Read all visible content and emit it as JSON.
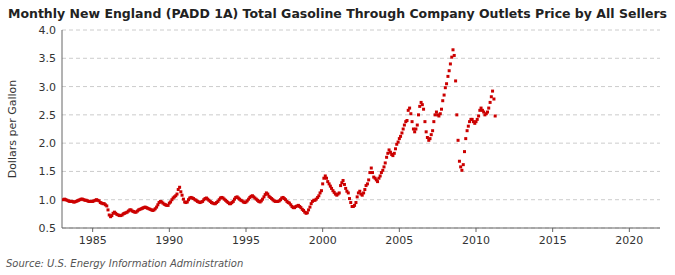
{
  "chart_data": {
    "type": "scatter",
    "title": "Monthly New England (PADD 1A) Total Gasoline Through Company Outlets Price by All Sellers",
    "ylabel": "Dollars per Gallon",
    "source": "Source: U.S. Energy Information Administration",
    "color": "#cc0000",
    "marker": "square",
    "grid": true,
    "xlim": [
      1983,
      2022
    ],
    "ylim": [
      0.5,
      4.0
    ],
    "xticks": [
      1985,
      1990,
      1995,
      2000,
      2005,
      2010,
      2015,
      2020
    ],
    "yticks": [
      0.5,
      {
        "value": 1.0,
        "label": "1.0"
      },
      1.5,
      {
        "value": 2.0,
        "label": "2.0"
      },
      2.5,
      {
        "value": 3.0,
        "label": "3.0"
      },
      3.5,
      {
        "value": 4.0,
        "label": "4.0"
      }
    ],
    "x": [
      1983.08,
      1983.17,
      1983.25,
      1983.33,
      1983.42,
      1983.5,
      1983.58,
      1983.67,
      1983.75,
      1983.83,
      1983.92,
      1984.0,
      1984.08,
      1984.17,
      1984.25,
      1984.33,
      1984.42,
      1984.5,
      1984.58,
      1984.67,
      1984.75,
      1984.83,
      1984.92,
      1985.0,
      1985.08,
      1985.17,
      1985.25,
      1985.33,
      1985.42,
      1985.5,
      1985.58,
      1985.67,
      1985.75,
      1985.83,
      1985.92,
      1986.0,
      1986.08,
      1986.17,
      1986.25,
      1986.33,
      1986.42,
      1986.5,
      1986.58,
      1986.67,
      1986.75,
      1986.83,
      1986.92,
      1987.0,
      1987.08,
      1987.17,
      1987.25,
      1987.33,
      1987.42,
      1987.5,
      1987.58,
      1987.67,
      1987.75,
      1987.83,
      1987.92,
      1988.0,
      1988.08,
      1988.17,
      1988.25,
      1988.33,
      1988.42,
      1988.5,
      1988.58,
      1988.67,
      1988.75,
      1988.83,
      1988.92,
      1989.0,
      1989.08,
      1989.17,
      1989.25,
      1989.33,
      1989.42,
      1989.5,
      1989.58,
      1989.67,
      1989.75,
      1989.83,
      1989.92,
      1990.0,
      1990.08,
      1990.17,
      1990.25,
      1990.33,
      1990.42,
      1990.5,
      1990.58,
      1990.67,
      1990.75,
      1990.83,
      1990.92,
      1991.0,
      1991.08,
      1991.17,
      1991.25,
      1991.33,
      1991.42,
      1991.5,
      1991.58,
      1991.67,
      1991.75,
      1991.83,
      1991.92,
      1992.0,
      1992.08,
      1992.17,
      1992.25,
      1992.33,
      1992.42,
      1992.5,
      1992.58,
      1992.67,
      1992.75,
      1992.83,
      1992.92,
      1993.0,
      1993.08,
      1993.17,
      1993.25,
      1993.33,
      1993.42,
      1993.5,
      1993.58,
      1993.67,
      1993.75,
      1993.83,
      1993.92,
      1994.0,
      1994.08,
      1994.17,
      1994.25,
      1994.33,
      1994.42,
      1994.5,
      1994.58,
      1994.67,
      1994.75,
      1994.83,
      1994.92,
      1995.0,
      1995.08,
      1995.17,
      1995.25,
      1995.33,
      1995.42,
      1995.5,
      1995.58,
      1995.67,
      1995.75,
      1995.83,
      1995.92,
      1996.0,
      1996.08,
      1996.17,
      1996.25,
      1996.33,
      1996.42,
      1996.5,
      1996.58,
      1996.67,
      1996.75,
      1996.83,
      1996.92,
      1997.0,
      1997.08,
      1997.17,
      1997.25,
      1997.33,
      1997.42,
      1997.5,
      1997.58,
      1997.67,
      1997.75,
      1997.83,
      1997.92,
      1998.0,
      1998.08,
      1998.17,
      1998.25,
      1998.33,
      1998.42,
      1998.5,
      1998.58,
      1998.67,
      1998.75,
      1998.83,
      1998.92,
      1999.0,
      1999.08,
      1999.17,
      1999.25,
      1999.33,
      1999.42,
      1999.5,
      1999.58,
      1999.67,
      1999.75,
      1999.83,
      1999.92,
      2000.0,
      2000.08,
      2000.17,
      2000.25,
      2000.33,
      2000.42,
      2000.5,
      2000.58,
      2000.67,
      2000.75,
      2000.83,
      2000.92,
      2001.0,
      2001.08,
      2001.17,
      2001.25,
      2001.33,
      2001.42,
      2001.5,
      2001.58,
      2001.67,
      2001.75,
      2001.83,
      2001.92,
      2002.0,
      2002.08,
      2002.17,
      2002.25,
      2002.33,
      2002.42,
      2002.5,
      2002.58,
      2002.67,
      2002.75,
      2002.83,
      2002.92,
      2003.0,
      2003.08,
      2003.17,
      2003.25,
      2003.33,
      2003.42,
      2003.5,
      2003.58,
      2003.67,
      2003.75,
      2003.83,
      2003.92,
      2004.0,
      2004.08,
      2004.17,
      2004.25,
      2004.33,
      2004.42,
      2004.5,
      2004.58,
      2004.67,
      2004.75,
      2004.83,
      2004.92,
      2005.0,
      2005.08,
      2005.17,
      2005.25,
      2005.33,
      2005.42,
      2005.5,
      2005.58,
      2005.67,
      2005.75,
      2005.83,
      2005.92,
      2006.0,
      2006.08,
      2006.17,
      2006.25,
      2006.33,
      2006.42,
      2006.5,
      2006.58,
      2006.67,
      2006.75,
      2006.83,
      2006.92,
      2007.0,
      2007.08,
      2007.17,
      2007.25,
      2007.33,
      2007.42,
      2007.5,
      2007.58,
      2007.67,
      2007.75,
      2007.83,
      2007.92,
      2008.0,
      2008.08,
      2008.17,
      2008.25,
      2008.33,
      2008.42,
      2008.5,
      2008.58,
      2008.67,
      2008.75,
      2008.83,
      2008.92,
      2009.0,
      2009.08,
      2009.17,
      2009.25,
      2009.33,
      2009.42,
      2009.5,
      2009.58,
      2009.67,
      2009.75,
      2009.83,
      2009.92,
      2010.0,
      2010.08,
      2010.17,
      2010.25,
      2010.33,
      2010.42,
      2010.5,
      2010.58,
      2010.67,
      2010.75,
      2010.83,
      2010.92,
      2011.0,
      2011.08,
      2011.17,
      2011.25
    ],
    "values": [
      1.0,
      1.01,
      1.0,
      0.99,
      0.98,
      0.97,
      0.97,
      0.97,
      0.96,
      0.96,
      0.97,
      0.98,
      0.99,
      1.0,
      1.01,
      1.01,
      1.0,
      0.99,
      0.99,
      0.98,
      0.97,
      0.97,
      0.97,
      0.97,
      0.98,
      0.99,
      1.0,
      0.99,
      0.98,
      0.95,
      0.94,
      0.93,
      0.93,
      0.91,
      0.89,
      0.82,
      0.73,
      0.7,
      0.72,
      0.76,
      0.78,
      0.76,
      0.74,
      0.73,
      0.72,
      0.72,
      0.73,
      0.75,
      0.76,
      0.77,
      0.78,
      0.8,
      0.82,
      0.82,
      0.8,
      0.79,
      0.78,
      0.78,
      0.8,
      0.82,
      0.83,
      0.84,
      0.85,
      0.86,
      0.87,
      0.86,
      0.85,
      0.84,
      0.83,
      0.82,
      0.81,
      0.82,
      0.84,
      0.87,
      0.91,
      0.95,
      0.97,
      0.96,
      0.94,
      0.92,
      0.91,
      0.9,
      0.9,
      0.94,
      0.96,
      1.0,
      1.03,
      1.05,
      1.07,
      1.1,
      1.18,
      1.22,
      1.14,
      1.08,
      1.01,
      0.96,
      0.95,
      0.96,
      1.0,
      1.03,
      1.04,
      1.03,
      1.02,
      1.0,
      0.99,
      0.97,
      0.96,
      0.95,
      0.96,
      0.97,
      1.0,
      1.02,
      1.03,
      1.01,
      0.99,
      0.97,
      0.95,
      0.94,
      0.93,
      0.93,
      0.95,
      0.97,
      1.0,
      1.03,
      1.04,
      1.03,
      1.01,
      0.99,
      0.97,
      0.95,
      0.93,
      0.93,
      0.95,
      0.97,
      1.01,
      1.04,
      1.05,
      1.03,
      1.01,
      0.99,
      0.98,
      0.96,
      0.95,
      0.96,
      0.98,
      1.01,
      1.04,
      1.06,
      1.07,
      1.05,
      1.03,
      1.01,
      0.99,
      0.97,
      0.96,
      0.98,
      1.01,
      1.05,
      1.09,
      1.12,
      1.1,
      1.06,
      1.04,
      1.02,
      1.0,
      0.98,
      0.97,
      0.97,
      0.97,
      0.98,
      1.0,
      1.03,
      1.04,
      1.02,
      1.0,
      0.97,
      0.95,
      0.94,
      0.91,
      0.88,
      0.86,
      0.86,
      0.88,
      0.89,
      0.9,
      0.88,
      0.86,
      0.83,
      0.81,
      0.78,
      0.76,
      0.77,
      0.82,
      0.87,
      0.93,
      0.97,
      0.99,
      0.99,
      1.01,
      1.04,
      1.07,
      1.12,
      1.16,
      1.28,
      1.38,
      1.42,
      1.38,
      1.32,
      1.28,
      1.24,
      1.2,
      1.16,
      1.13,
      1.1,
      1.08,
      1.1,
      1.12,
      1.25,
      1.3,
      1.34,
      1.27,
      1.2,
      1.15,
      1.12,
      1.02,
      0.95,
      0.88,
      0.88,
      0.9,
      0.95,
      1.05,
      1.12,
      1.15,
      1.1,
      1.08,
      1.12,
      1.18,
      1.25,
      1.28,
      1.35,
      1.48,
      1.56,
      1.48,
      1.4,
      1.38,
      1.35,
      1.32,
      1.38,
      1.42,
      1.48,
      1.52,
      1.58,
      1.65,
      1.75,
      1.82,
      1.88,
      1.84,
      1.8,
      1.78,
      1.82,
      1.9,
      1.98,
      2.02,
      2.08,
      2.12,
      2.18,
      2.25,
      2.32,
      2.38,
      2.4,
      2.58,
      2.62,
      2.52,
      2.38,
      2.25,
      2.2,
      2.25,
      2.32,
      2.5,
      2.65,
      2.72,
      2.68,
      2.6,
      2.38,
      2.2,
      2.1,
      2.05,
      2.08,
      2.15,
      2.22,
      2.38,
      2.5,
      2.55,
      2.5,
      2.48,
      2.52,
      2.6,
      2.75,
      2.85,
      2.98,
      3.05,
      3.18,
      3.28,
      3.4,
      3.52,
      3.65,
      3.55,
      3.1,
      2.5,
      2.05,
      1.68,
      1.58,
      1.52,
      1.62,
      1.85,
      2.08,
      2.22,
      2.3,
      2.38,
      2.42,
      2.42,
      2.38,
      2.35,
      2.38,
      2.42,
      2.48,
      2.58,
      2.62,
      2.58,
      2.55,
      2.5,
      2.52,
      2.55,
      2.62,
      2.72,
      2.82,
      2.92,
      2.78,
      2.48
    ]
  }
}
